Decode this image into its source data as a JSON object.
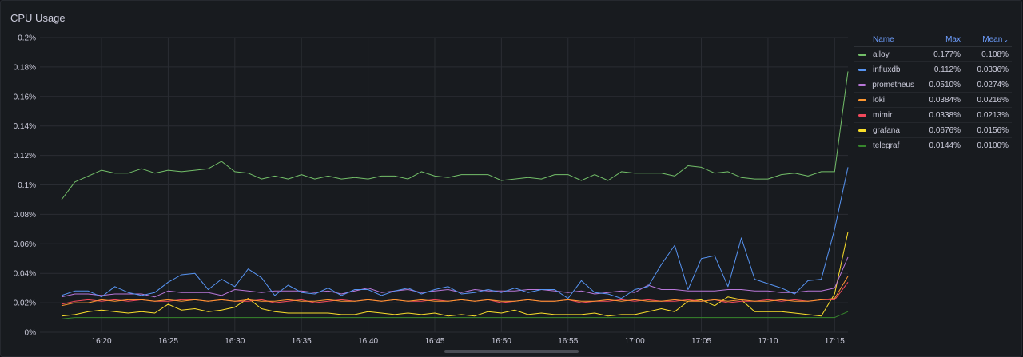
{
  "panel": {
    "title": "CPU Usage"
  },
  "legend": {
    "headers": {
      "name": "Name",
      "max": "Max",
      "mean": "Mean"
    },
    "sort_icon": "chevron-down-icon"
  },
  "chart_data": {
    "type": "line",
    "title": "CPU Usage",
    "x_start": "16:17",
    "x_interval_minutes": 1,
    "x_ticks": [
      "16:20",
      "16:25",
      "16:30",
      "16:35",
      "16:40",
      "16:45",
      "16:50",
      "16:55",
      "17:00",
      "17:05",
      "17:10",
      "17:15"
    ],
    "y_ticks": [
      "0%",
      "0.02%",
      "0.04%",
      "0.06%",
      "0.08%",
      "0.1%",
      "0.12%",
      "0.14%",
      "0.16%",
      "0.18%",
      "0.2%"
    ],
    "ylim": [
      0,
      0.2
    ],
    "grid": true,
    "legend_position": "right",
    "series": [
      {
        "name": "alloy",
        "color": "#73bf69",
        "max": "0.177%",
        "mean": "0.108%",
        "values": [
          0.09,
          0.102,
          0.106,
          0.11,
          0.108,
          0.108,
          0.111,
          0.108,
          0.11,
          0.109,
          0.11,
          0.111,
          0.116,
          0.109,
          0.108,
          0.104,
          0.106,
          0.104,
          0.107,
          0.104,
          0.106,
          0.104,
          0.105,
          0.104,
          0.106,
          0.106,
          0.104,
          0.109,
          0.106,
          0.105,
          0.107,
          0.107,
          0.107,
          0.103,
          0.104,
          0.105,
          0.104,
          0.107,
          0.107,
          0.103,
          0.107,
          0.103,
          0.109,
          0.108,
          0.108,
          0.108,
          0.106,
          0.113,
          0.112,
          0.108,
          0.109,
          0.105,
          0.104,
          0.104,
          0.107,
          0.108,
          0.106,
          0.109,
          0.109,
          0.177
        ]
      },
      {
        "name": "influxdb",
        "color": "#5794f2",
        "max": "0.112%",
        "mean": "0.0336%",
        "values": [
          0.025,
          0.028,
          0.028,
          0.024,
          0.031,
          0.027,
          0.025,
          0.027,
          0.034,
          0.039,
          0.04,
          0.029,
          0.036,
          0.031,
          0.043,
          0.037,
          0.025,
          0.032,
          0.027,
          0.026,
          0.03,
          0.025,
          0.029,
          0.029,
          0.025,
          0.028,
          0.03,
          0.026,
          0.029,
          0.031,
          0.026,
          0.027,
          0.029,
          0.027,
          0.03,
          0.027,
          0.029,
          0.029,
          0.023,
          0.035,
          0.027,
          0.026,
          0.023,
          0.029,
          0.031,
          0.046,
          0.059,
          0.029,
          0.05,
          0.052,
          0.031,
          0.064,
          0.036,
          0.033,
          0.03,
          0.026,
          0.035,
          0.036,
          0.07,
          0.112
        ]
      },
      {
        "name": "prometheus",
        "color": "#b877d9",
        "max": "0.0510%",
        "mean": "0.0274%",
        "values": [
          0.024,
          0.026,
          0.026,
          0.025,
          0.026,
          0.026,
          0.026,
          0.024,
          0.028,
          0.027,
          0.027,
          0.027,
          0.025,
          0.029,
          0.028,
          0.027,
          0.028,
          0.028,
          0.028,
          0.027,
          0.028,
          0.026,
          0.028,
          0.03,
          0.027,
          0.028,
          0.029,
          0.027,
          0.028,
          0.029,
          0.027,
          0.029,
          0.028,
          0.028,
          0.028,
          0.029,
          0.029,
          0.028,
          0.027,
          0.028,
          0.026,
          0.027,
          0.028,
          0.027,
          0.032,
          0.029,
          0.029,
          0.028,
          0.028,
          0.028,
          0.029,
          0.029,
          0.028,
          0.028,
          0.027,
          0.027,
          0.028,
          0.028,
          0.03,
          0.051
        ]
      },
      {
        "name": "loki",
        "color": "#ff9830",
        "max": "0.0384%",
        "mean": "0.0216%",
        "values": [
          0.018,
          0.02,
          0.02,
          0.022,
          0.021,
          0.022,
          0.022,
          0.021,
          0.022,
          0.021,
          0.022,
          0.021,
          0.022,
          0.021,
          0.022,
          0.021,
          0.021,
          0.022,
          0.021,
          0.021,
          0.022,
          0.021,
          0.021,
          0.022,
          0.021,
          0.022,
          0.021,
          0.022,
          0.021,
          0.021,
          0.022,
          0.021,
          0.022,
          0.021,
          0.021,
          0.022,
          0.021,
          0.021,
          0.022,
          0.021,
          0.021,
          0.022,
          0.021,
          0.022,
          0.021,
          0.021,
          0.022,
          0.021,
          0.021,
          0.022,
          0.021,
          0.022,
          0.021,
          0.021,
          0.022,
          0.021,
          0.021,
          0.022,
          0.023,
          0.038
        ]
      },
      {
        "name": "mimir",
        "color": "#f2495c",
        "max": "0.0338%",
        "mean": "0.0213%",
        "values": [
          0.019,
          0.021,
          0.022,
          0.021,
          0.022,
          0.021,
          0.022,
          0.021,
          0.021,
          0.022,
          0.022,
          0.021,
          0.022,
          0.021,
          0.021,
          0.022,
          0.02,
          0.021,
          0.022,
          0.02,
          0.021,
          0.022,
          0.021,
          0.022,
          0.021,
          0.022,
          0.021,
          0.021,
          0.022,
          0.021,
          0.022,
          0.021,
          0.022,
          0.02,
          0.021,
          0.022,
          0.021,
          0.021,
          0.022,
          0.02,
          0.021,
          0.021,
          0.022,
          0.021,
          0.022,
          0.021,
          0.021,
          0.022,
          0.021,
          0.022,
          0.02,
          0.021,
          0.021,
          0.022,
          0.021,
          0.022,
          0.021,
          0.022,
          0.022,
          0.034
        ]
      },
      {
        "name": "grafana",
        "color": "#fade2a",
        "max": "0.0676%",
        "mean": "0.0156%",
        "values": [
          0.011,
          0.012,
          0.014,
          0.015,
          0.014,
          0.013,
          0.014,
          0.013,
          0.019,
          0.015,
          0.016,
          0.014,
          0.015,
          0.017,
          0.023,
          0.016,
          0.014,
          0.013,
          0.013,
          0.013,
          0.013,
          0.012,
          0.012,
          0.014,
          0.013,
          0.012,
          0.013,
          0.012,
          0.013,
          0.011,
          0.012,
          0.011,
          0.014,
          0.013,
          0.015,
          0.012,
          0.013,
          0.012,
          0.012,
          0.012,
          0.013,
          0.011,
          0.012,
          0.012,
          0.014,
          0.016,
          0.014,
          0.021,
          0.022,
          0.018,
          0.024,
          0.022,
          0.014,
          0.014,
          0.014,
          0.013,
          0.012,
          0.011,
          0.026,
          0.068
        ]
      },
      {
        "name": "telegraf",
        "color": "#37872d",
        "max": "0.0144%",
        "mean": "0.0100%",
        "values": [
          0.009,
          0.01,
          0.01,
          0.01,
          0.01,
          0.01,
          0.01,
          0.01,
          0.01,
          0.01,
          0.01,
          0.01,
          0.01,
          0.01,
          0.01,
          0.01,
          0.01,
          0.01,
          0.01,
          0.01,
          0.01,
          0.01,
          0.01,
          0.01,
          0.01,
          0.01,
          0.01,
          0.01,
          0.01,
          0.01,
          0.01,
          0.01,
          0.01,
          0.01,
          0.01,
          0.01,
          0.01,
          0.01,
          0.01,
          0.01,
          0.01,
          0.01,
          0.01,
          0.01,
          0.01,
          0.01,
          0.01,
          0.01,
          0.01,
          0.01,
          0.01,
          0.01,
          0.01,
          0.01,
          0.01,
          0.01,
          0.01,
          0.01,
          0.01,
          0.014
        ]
      }
    ]
  }
}
